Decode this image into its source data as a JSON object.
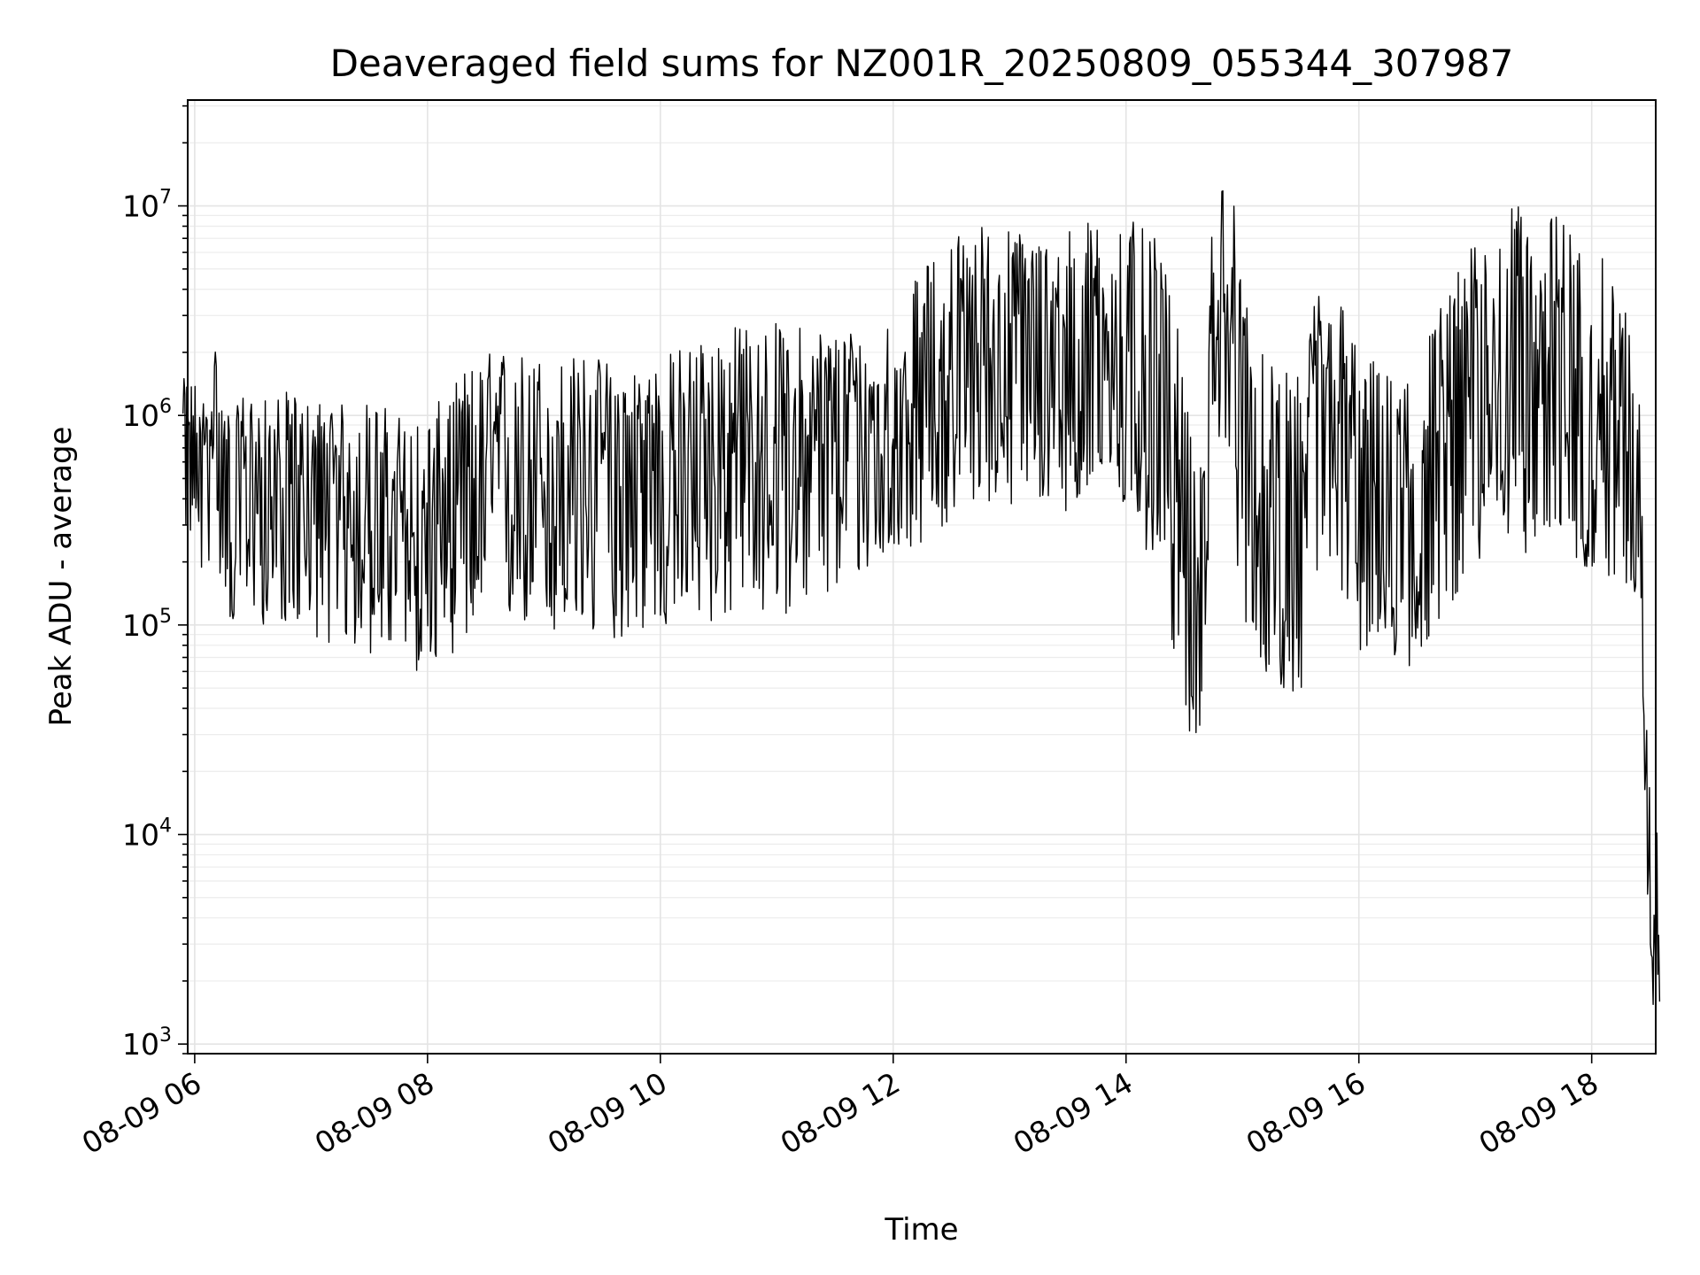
{
  "chart_data": {
    "type": "line",
    "title": "Deaveraged field sums for NZ001R_20250809_055344_307987",
    "xlabel": "Time",
    "ylabel": "Peak ADU - average",
    "yscale": "log",
    "ylim": [
      900,
      32000000
    ],
    "xlim_hours": [
      5.94,
      18.55
    ],
    "grid": true,
    "line_color": "#000000",
    "x_ticks": [
      {
        "hour": 6,
        "label": "08-09 06"
      },
      {
        "hour": 8,
        "label": "08-09 08"
      },
      {
        "hour": 10,
        "label": "08-09 10"
      },
      {
        "hour": 12,
        "label": "08-09 12"
      },
      {
        "hour": 14,
        "label": "08-09 14"
      },
      {
        "hour": 16,
        "label": "08-09 16"
      },
      {
        "hour": 18,
        "label": "08-09 18"
      }
    ],
    "y_ticks": [
      {
        "value": 1000,
        "base": "10",
        "exp": "3"
      },
      {
        "value": 10000,
        "base": "10",
        "exp": "4"
      },
      {
        "value": 100000,
        "base": "10",
        "exp": "5"
      },
      {
        "value": 1000000,
        "base": "10",
        "exp": "6"
      },
      {
        "value": 10000000,
        "base": "10",
        "exp": "7"
      }
    ],
    "series": [
      {
        "x_time": [
          "08-09 05:54",
          "08-09 06:00",
          "08-09 06:05",
          "08-09 06:10",
          "08-09 06:15",
          "08-09 06:20",
          "08-09 06:25",
          "08-09 06:30",
          "08-09 06:35",
          "08-09 06:40",
          "08-09 06:45",
          "08-09 06:50",
          "08-09 06:55",
          "08-09 07:00",
          "08-09 07:10",
          "08-09 07:20",
          "08-09 07:30",
          "08-09 07:40",
          "08-09 07:50",
          "08-09 08:00",
          "08-09 08:10",
          "08-09 08:20",
          "08-09 08:30",
          "08-09 08:40",
          "08-09 08:50",
          "08-09 09:00",
          "08-09 09:10",
          "08-09 09:20",
          "08-09 09:30",
          "08-09 09:40",
          "08-09 09:50",
          "08-09 10:00",
          "08-09 10:15",
          "08-09 10:30",
          "08-09 10:45",
          "08-09 11:00",
          "08-09 11:15",
          "08-09 11:30",
          "08-09 11:45",
          "08-09 12:00",
          "08-09 12:15",
          "08-09 12:30",
          "08-09 12:45",
          "08-09 13:00",
          "08-09 13:15",
          "08-09 13:30",
          "08-09 13:45",
          "08-09 14:00",
          "08-09 14:15",
          "08-09 14:25",
          "08-09 14:32",
          "08-09 14:38",
          "08-09 14:45",
          "08-09 14:52",
          "08-09 15:00",
          "08-09 15:10",
          "08-09 15:20",
          "08-09 15:30",
          "08-09 15:40",
          "08-09 15:50",
          "08-09 16:00",
          "08-09 16:15",
          "08-09 16:30",
          "08-09 16:45",
          "08-09 17:00",
          "08-09 17:15",
          "08-09 17:30",
          "08-09 17:45",
          "08-09 18:00",
          "08-09 18:10",
          "08-09 18:18",
          "08-09 18:25",
          "08-09 18:30",
          "08-09 18:35"
        ],
        "y_center": [
          800000,
          700000,
          650000,
          1200000,
          500000,
          350000,
          450000,
          500000,
          400000,
          380000,
          420000,
          400000,
          380000,
          400000,
          380000,
          360000,
          360000,
          320000,
          260000,
          250000,
          320000,
          400000,
          470000,
          500000,
          480000,
          480000,
          480000,
          520000,
          520000,
          520000,
          540000,
          560000,
          600000,
          650000,
          650000,
          650000,
          680000,
          700000,
          780000,
          900000,
          1100000,
          1700000,
          2000000,
          1800000,
          1800000,
          1800000,
          1900000,
          1900000,
          1500000,
          600000,
          150000,
          90000,
          2500000,
          2800000,
          700000,
          250000,
          200000,
          200000,
          1600000,
          700000,
          380000,
          320000,
          400000,
          700000,
          1200000,
          1700000,
          1800000,
          1500000,
          900000,
          700000,
          600000,
          550000,
          4500,
          3500
        ],
        "y_low": [
          300000,
          200000,
          150000,
          250000,
          130000,
          90000,
          100000,
          110000,
          100000,
          90000,
          100000,
          100000,
          95000,
          90000,
          80000,
          75000,
          70000,
          70000,
          60000,
          58000,
          70000,
          80000,
          90000,
          95000,
          95000,
          85000,
          80000,
          80000,
          80000,
          85000,
          90000,
          90000,
          95000,
          100000,
          110000,
          110000,
          120000,
          130000,
          170000,
          200000,
          250000,
          300000,
          400000,
          350000,
          350000,
          350000,
          350000,
          320000,
          170000,
          70000,
          30000,
          25000,
          700000,
          600000,
          110000,
          60000,
          50000,
          45000,
          180000,
          130000,
          75000,
          60000,
          60000,
          120000,
          170000,
          220000,
          220000,
          200000,
          170000,
          170000,
          150000,
          130000,
          1500,
          1400
        ],
        "y_high": [
          1500000,
          1500000,
          1200000,
          2400000,
          1200000,
          1000000,
          1300000,
          1300000,
          1200000,
          1200000,
          1300000,
          1300000,
          1200000,
          1200000,
          1200000,
          1100000,
          1200000,
          1100000,
          1000000,
          1000000,
          1300000,
          1700000,
          2000000,
          2200000,
          2000000,
          2000000,
          1900000,
          2000000,
          1900000,
          1800000,
          1800000,
          1900000,
          2300000,
          2600000,
          2800000,
          2800000,
          2700000,
          2800000,
          2600000,
          3000000,
          5000000,
          7500000,
          8500000,
          8000000,
          7500000,
          8000000,
          9000000,
          9000000,
          7000000,
          3500000,
          1000000,
          500000,
          12000000,
          20000000,
          5000000,
          2000000,
          1600000,
          1600000,
          5500000,
          4000000,
          2200000,
          1600000,
          2000000,
          4000000,
          7000000,
          10000000,
          10000000,
          9000000,
          6500000,
          5000000,
          3500000,
          1200000,
          27000,
          8000
        ]
      }
    ]
  }
}
